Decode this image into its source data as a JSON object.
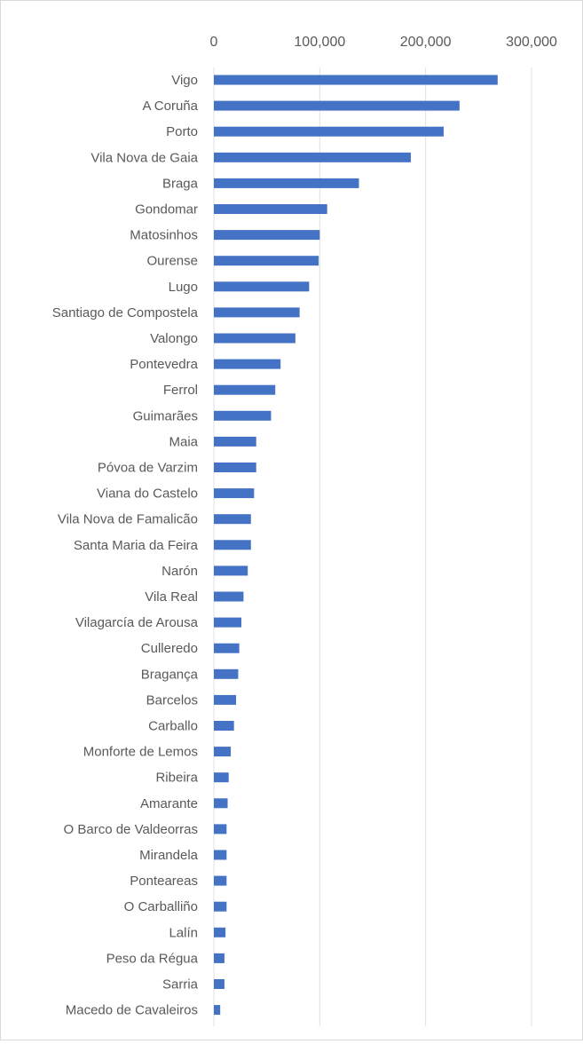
{
  "chart_data": {
    "type": "bar",
    "orientation": "horizontal",
    "title": "",
    "xlabel": "",
    "ylabel": "",
    "x_axis_position": "top",
    "xlim": [
      0,
      300000
    ],
    "x_ticks": [
      0,
      100000,
      200000,
      300000
    ],
    "x_tick_labels": [
      "0",
      "100,000",
      "200,000",
      "300,000"
    ],
    "grid": true,
    "legend": "none",
    "bar_color": "#4472c4",
    "grid_color": "#e0e0e0",
    "categories": [
      "Vigo",
      "A Coruña",
      "Porto",
      "Vila Nova de Gaia",
      "Braga",
      "Gondomar",
      "Matosinhos",
      "Ourense",
      "Lugo",
      "Santiago de Compostela",
      "Valongo",
      "Pontevedra",
      "Ferrol",
      "Guimarães",
      "Maia",
      "Póvoa de Varzim",
      "Viana do Castelo",
      "Vila Nova de Famalicão",
      "Santa Maria da Feira",
      "Narón",
      "Vila Real",
      "Vilagarcía de Arousa",
      "Culleredo",
      "Bragança",
      "Barcelos",
      "Carballo",
      "Monforte de Lemos",
      "Ribeira",
      "Amarante",
      "O Barco de Valdeorras",
      "Mirandela",
      "Ponteareas",
      "O Carballiño",
      "Lalín",
      "Peso da Régua",
      "Sarria",
      "Macedo de Cavaleiros"
    ],
    "values": [
      268000,
      232000,
      217000,
      186000,
      137000,
      107000,
      100000,
      99000,
      90000,
      81000,
      77000,
      63000,
      58000,
      54000,
      40000,
      40000,
      38000,
      35000,
      35000,
      32000,
      28000,
      26000,
      24000,
      23000,
      21000,
      19000,
      16000,
      14000,
      13000,
      12000,
      12000,
      12000,
      12000,
      11000,
      10000,
      10000,
      6000
    ]
  }
}
